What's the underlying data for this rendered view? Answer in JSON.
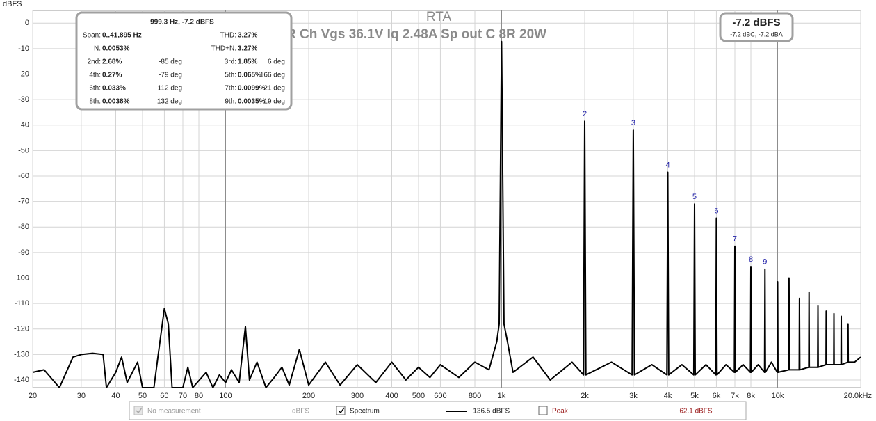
{
  "chart_data": {
    "type": "line",
    "title": "RTA",
    "subtitle": "R Ch Vgs 36.1V Iq 2.48A Sp out C 8R 20W",
    "y_label": "dBFS",
    "log_x": true,
    "grid": true,
    "xlim": [
      20,
      20000
    ],
    "ylim": [
      -143,
      5
    ],
    "xticks": [
      20,
      30,
      40,
      50,
      60,
      70,
      80,
      100,
      200,
      300,
      400,
      500,
      600,
      800,
      {
        "value": 1000,
        "label": "1k"
      },
      {
        "value": 2000,
        "label": "2k"
      },
      {
        "value": 3000,
        "label": "3k"
      },
      {
        "value": 4000,
        "label": "4k"
      },
      {
        "value": 5000,
        "label": "5k"
      },
      {
        "value": 6000,
        "label": "6k"
      },
      {
        "value": 7000,
        "label": "7k"
      },
      {
        "value": 8000,
        "label": "8k"
      },
      {
        "value": 10000,
        "label": "10k"
      },
      {
        "value": 20000,
        "label": "20.0kHz"
      }
    ],
    "yticks": [
      0,
      -10,
      -20,
      -30,
      -40,
      -50,
      -60,
      -70,
      -80,
      -90,
      -100,
      -110,
      -120,
      -130,
      -140
    ],
    "series": [
      {
        "name": "Spectrum",
        "color": "#000000",
        "x": [
          20,
          22,
          25,
          28,
          30,
          33,
          36,
          37,
          40,
          42,
          44,
          48,
          50,
          55,
          57,
          60,
          62,
          64,
          70,
          73,
          76,
          85,
          90,
          95,
          100,
          105,
          112,
          118,
          122,
          130,
          140,
          150,
          160,
          170,
          185,
          200,
          230,
          260,
          300,
          350,
          400,
          450,
          500,
          550,
          600,
          700,
          800,
          900,
          960,
          980,
          999.3,
          1020,
          1050,
          1100,
          1300,
          1500,
          1800,
          1980,
          2000,
          2020,
          2500,
          2970,
          3000,
          3030,
          3500,
          3970,
          4000,
          4030,
          4500,
          4970,
          5000,
          5030,
          5500,
          5970,
          6000,
          6030,
          6500,
          6970,
          7000,
          7030,
          7500,
          7970,
          8000,
          8030,
          8500,
          8970,
          9000,
          9030,
          9500,
          9970,
          10000,
          10030,
          10970,
          11000,
          11030,
          11970,
          12000,
          12030,
          12970,
          13000,
          13030,
          13970,
          14000,
          14030,
          14970,
          15000,
          15030,
          15970,
          16000,
          16030,
          16970,
          17000,
          17030,
          17970,
          18000,
          18030,
          19000,
          20000
        ],
        "values": [
          -137,
          -136,
          -143,
          -131,
          -130,
          -129.5,
          -130,
          -143,
          -137,
          -131,
          -141,
          -133,
          -143,
          -143,
          -130,
          -112,
          -118,
          -143,
          -143,
          -135,
          -143,
          -137,
          -143,
          -138,
          -141,
          -136,
          -141,
          -119,
          -140,
          -133,
          -143,
          -139,
          -135,
          -142,
          -128,
          -142,
          -133,
          -142,
          -134,
          -141,
          -133,
          -140,
          -135,
          -139,
          -134,
          -139,
          -133,
          -136,
          -125,
          -118,
          -7.2,
          -118,
          -125,
          -137,
          -131,
          -140,
          -133,
          -138,
          -38.5,
          -138,
          -133,
          -138,
          -42,
          -138,
          -134,
          -138,
          -58.5,
          -138,
          -134,
          -138,
          -71,
          -138,
          -134,
          -138,
          -76.5,
          -138,
          -134,
          -137,
          -87.5,
          -137,
          -134,
          -137,
          -95.5,
          -137,
          -134,
          -137,
          -96.5,
          -137,
          -133,
          -137,
          -101.5,
          -137,
          -136,
          -100,
          -136,
          -136,
          -108,
          -136,
          -135,
          -105.5,
          -135,
          -135,
          -111,
          -135,
          -134,
          -113,
          -134,
          -134,
          -114,
          -134,
          -134,
          -115,
          -134,
          -133,
          -118,
          -133,
          -133,
          -131
        ]
      }
    ],
    "harmonics": [
      {
        "label": "2",
        "x": 2000,
        "y": -38.5
      },
      {
        "label": "3",
        "x": 3000,
        "y": -42
      },
      {
        "label": "4",
        "x": 4000,
        "y": -58.5
      },
      {
        "label": "5",
        "x": 5000,
        "y": -71
      },
      {
        "label": "6",
        "x": 6000,
        "y": -76.5
      },
      {
        "label": "7",
        "x": 7000,
        "y": -87.5
      },
      {
        "label": "8",
        "x": 8000,
        "y": -95.5
      },
      {
        "label": "9",
        "x": 9000,
        "y": -96.5
      }
    ]
  },
  "info_box": {
    "header": "999.3 Hz, -7.2 dBFS",
    "rows": [
      [
        "Span:",
        "0..41,895 Hz",
        "THD:",
        "3.27%"
      ],
      [
        "N:",
        "0.0053%",
        "THD+N:",
        "3.27%"
      ],
      [
        "2nd:",
        "2.68%",
        "-85 deg",
        "3rd:",
        "1.85%",
        "6 deg"
      ],
      [
        "4th:",
        "0.27%",
        "-79 deg",
        "5th:",
        "0.065%",
        "-166 deg"
      ],
      [
        "6th:",
        "0.033%",
        "112 deg",
        "7th:",
        "0.0099%",
        "21 deg"
      ],
      [
        "8th:",
        "0.0038%",
        "132 deg",
        "9th:",
        "0.0035%",
        "19 deg"
      ]
    ]
  },
  "readout": {
    "level": "-7.2 dBFS",
    "weighted": "-7.2 dBC, -7.2 dBA"
  },
  "legend_bar": {
    "no_measurement": "No measurement",
    "unit": "dBFS",
    "spectrum_level": "-136.5 dBFS",
    "peak": "Peak",
    "peak_level": "-62.1 dBFS"
  }
}
